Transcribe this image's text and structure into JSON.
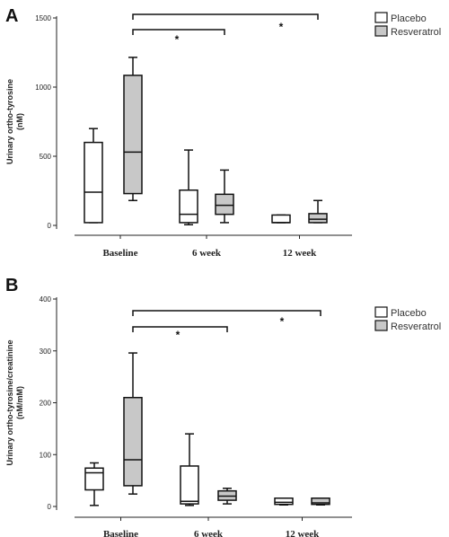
{
  "chart_data": [
    {
      "panel": "A",
      "type": "box",
      "ylabel_lines": [
        "Urinary ortho-tyrosine",
        "(nM)"
      ],
      "ylim": [
        0,
        1500
      ],
      "yticks": [
        0,
        500,
        1000,
        1500
      ],
      "categories": [
        "Baseline",
        "6 week",
        "12 week"
      ],
      "legend": {
        "position": "top-right",
        "entries": [
          "Placebo",
          "Resveratrol"
        ]
      },
      "series": [
        {
          "name": "Placebo",
          "color": "#ffffff",
          "boxes": [
            {
              "min": 20,
              "q1": 20,
              "median": 240,
              "q3": 600,
              "max": 700
            },
            {
              "min": 5,
              "q1": 20,
              "median": 80,
              "q3": 255,
              "max": 545
            },
            {
              "min": 20,
              "q1": 20,
              "median": 20,
              "q3": 75,
              "max": 75
            }
          ]
        },
        {
          "name": "Resveratrol",
          "color": "#c8c8c8",
          "boxes": [
            {
              "min": 180,
              "q1": 230,
              "median": 530,
              "q3": 1085,
              "max": 1215
            },
            {
              "min": 20,
              "q1": 80,
              "median": 145,
              "q3": 225,
              "max": 400
            },
            {
              "min": 20,
              "q1": 20,
              "median": 45,
              "q3": 85,
              "max": 180
            }
          ]
        }
      ],
      "annotations": [
        {
          "from": 1,
          "to": 4,
          "label": "*"
        },
        {
          "from": 1,
          "to": 2,
          "label": "*"
        }
      ]
    },
    {
      "panel": "B",
      "type": "box",
      "ylabel_lines": [
        "Urinary ortho-tyrosine/creatinine",
        "(nM/mM)"
      ],
      "ylim": [
        0,
        400
      ],
      "yticks": [
        0,
        100,
        200,
        300,
        400
      ],
      "categories": [
        "Baseline",
        "6 week",
        "12 week"
      ],
      "legend": {
        "position": "top-right",
        "entries": [
          "Placebo",
          "Resveratrol"
        ]
      },
      "series": [
        {
          "name": "Placebo",
          "color": "#ffffff",
          "boxes": [
            {
              "min": 2,
              "q1": 32,
              "median": 65,
              "q3": 74,
              "max": 84
            },
            {
              "min": 2,
              "q1": 5,
              "median": 10,
              "q3": 78,
              "max": 140
            },
            {
              "min": 3,
              "q1": 4,
              "median": 8,
              "q3": 16,
              "max": 16
            }
          ]
        },
        {
          "name": "Resveratrol",
          "color": "#c8c8c8",
          "boxes": [
            {
              "min": 24,
              "q1": 40,
              "median": 90,
              "q3": 210,
              "max": 296
            },
            {
              "min": 5,
              "q1": 12,
              "median": 20,
              "q3": 30,
              "max": 35
            },
            {
              "min": 3,
              "q1": 4,
              "median": 7,
              "q3": 16,
              "max": 16
            }
          ]
        }
      ],
      "annotations": [
        {
          "from": 1,
          "to": 4,
          "label": "*"
        },
        {
          "from": 1,
          "to": 2,
          "label": "*"
        }
      ]
    }
  ]
}
